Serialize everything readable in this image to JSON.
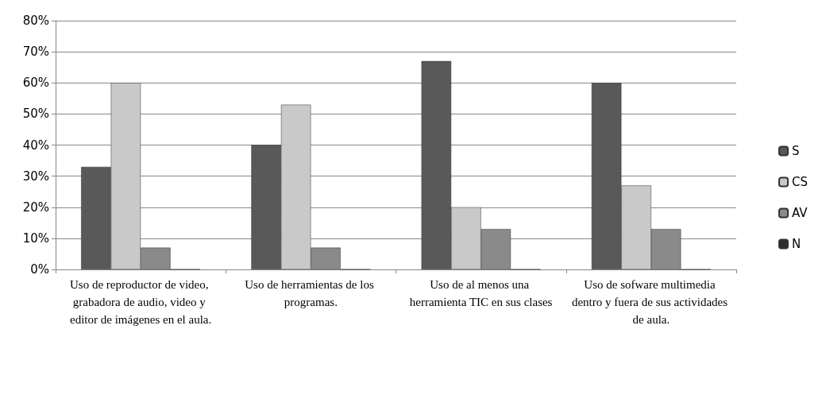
{
  "chart_data": {
    "type": "bar",
    "categories": [
      "Uso de reproductor de video, grabadora de audio, video y editor de imágenes en el aula.",
      "Uso de herramientas de los programas.",
      "Uso de al menos una herramienta TIC en sus clases",
      "Uso de sofware multimedia dentro y fuera de sus actividades de aula."
    ],
    "series": [
      {
        "name": "S",
        "color": "#595959",
        "values": [
          33,
          40,
          67,
          60
        ]
      },
      {
        "name": "CS",
        "color": "#c9c9c9",
        "values": [
          60,
          53,
          20,
          27
        ]
      },
      {
        "name": "AV",
        "color": "#8a8a8a",
        "values": [
          7,
          7,
          13,
          13
        ]
      },
      {
        "name": "N",
        "color": "#2e2e2e",
        "values": [
          0,
          0,
          0,
          0
        ]
      }
    ],
    "ylim": [
      0,
      80
    ],
    "yticks": [
      {
        "value": 0,
        "label": "0%"
      },
      {
        "value": 10,
        "label": "10%"
      },
      {
        "value": 20,
        "label": "20%"
      },
      {
        "value": 30,
        "label": "30%"
      },
      {
        "value": 40,
        "label": "40%"
      },
      {
        "value": 50,
        "label": "50%"
      },
      {
        "value": 60,
        "label": "60%"
      },
      {
        "value": 70,
        "label": "70%"
      },
      {
        "value": 80,
        "label": "80%"
      }
    ],
    "grid": "y",
    "legend": "right"
  }
}
